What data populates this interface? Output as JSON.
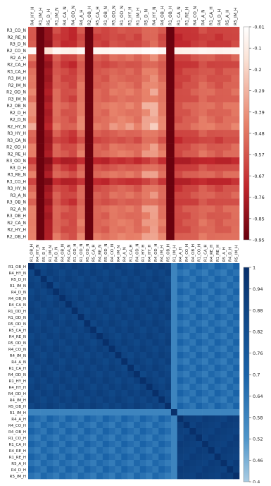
{
  "chart_data": [
    {
      "type": "heatmap",
      "colormap": "red-white",
      "colors": {
        "low": "#67000d",
        "mid": "#d73027",
        "high": "#ffffff"
      },
      "columns": [
        "R4_HY_H",
        "R1_IM_H",
        "R5_D_H",
        "R1_IM_N",
        "R4_CA_N",
        "R4_OD_N",
        "R4_A_H",
        "R2_OB_H",
        "R5_CA_H",
        "R1_OB_N",
        "R5_OD_N",
        "R1_OD_N",
        "R1_HY_H",
        "R1_IM_H",
        "R5_D_N",
        "R4_HY_N",
        "R4_OB_H",
        "R1_OB_H",
        "R1_CA_N",
        "R1_RE_H",
        "R4_CO_N",
        "R4_A_N",
        "R1_CA_H",
        "R4_D_H",
        "R5_A_H",
        "R5_IM_H"
      ],
      "rows": [
        "R3_CO_N",
        "R2_RE_N",
        "R3_D_N",
        "R2_CO_N",
        "R2_A_H",
        "R2_CA_H",
        "R3_CA_H",
        "R3_IM_H",
        "R2_IM_N",
        "R2_OD_N",
        "R3_IM_N",
        "R2_OB_N",
        "R2_D_H",
        "R2_D_N",
        "R2_HY_N",
        "R3_HY_H",
        "R3_CA_N",
        "R2_OD_H",
        "R2_RE_H",
        "R3_OD_N",
        "R3_D_H",
        "R3_RE_N",
        "R3_CO_H",
        "R3_HY_N",
        "R3_A_N",
        "R3_OB_N",
        "R2_A_N",
        "R3_OB_H",
        "R2_CA_N",
        "R2_HY_H",
        "R2_OB_H"
      ],
      "colorbar": {
        "ticks": [
          "-0.01",
          "-0.1",
          "-0.2",
          "-0.29",
          "-0.39",
          "-0.48",
          "-0.57",
          "-0.67",
          "-0.76",
          "-0.85",
          "-0.95"
        ],
        "range": [
          -0.95,
          -0.01
        ]
      },
      "row_profile": [
        0.35,
        0.3,
        0.3,
        0.05,
        0.48,
        0.35,
        0.45,
        0.45,
        0.5,
        0.55,
        0.5,
        0.6,
        0.55,
        0.58,
        0.65,
        0.45,
        0.35,
        0.5,
        0.55,
        0.12,
        0.4,
        0.55,
        0.15,
        0.42,
        0.5,
        0.4,
        0.55,
        0.5,
        0.55,
        0.52,
        0.6
      ],
      "col_profile": [
        0.85,
        -0.45,
        0.15,
        0.72,
        0.6,
        0.55,
        0.8,
        -0.45,
        0.72,
        0.7,
        0.8,
        0.8,
        0.8,
        0.75,
        0.9,
        0.95,
        0.8,
        -0.45,
        0.55,
        0.6,
        0.65,
        0.75,
        0.7,
        0.65,
        0.7,
        0.75
      ]
    },
    {
      "type": "heatmap",
      "colormap": "blue",
      "colors": {
        "low": "#a9cce3",
        "high": "#08306b"
      },
      "columns": [
        "R1_OB_H",
        "R4_HY_N",
        "R5_D_H",
        "R1_IM_N",
        "R4_D_N",
        "R4_OB_N",
        "R4_CA_N",
        "R1_OD_H",
        "R1_OD_N",
        "R5_OD_N",
        "R5_CA_H",
        "R4_RE_N",
        "R5_OD_N",
        "R4_CO_N",
        "R4_IM_N",
        "R4_A_N",
        "R1_CA_H",
        "R4_OD_N",
        "R1_HY_H",
        "R4_HY_H",
        "R4_OD_H",
        "R4_IM_H",
        "R5_OB_H",
        "R1_IM_H",
        "R4_A_H",
        "R4_CO_H",
        "R4_OB_H",
        "R1_CO_H",
        "R1_CA_H",
        "R4_RE_H",
        "R1_RE_H",
        "R5_A_H",
        "R4_D_H",
        "R5_IM_H"
      ],
      "rows": [
        "R1_OB_H",
        "R4_HY_N",
        "R5_D_H",
        "R1_IM_N",
        "R4_D_N",
        "R4_OB_N",
        "R4_CA_N",
        "R1_OD_H",
        "R1_OD_N",
        "R5_OD_N",
        "R5_CA_H",
        "R4_RE_N",
        "R5_OD_N",
        "R4_CO_N",
        "R4_IM_N",
        "R4_A_N",
        "R1_CA_H",
        "R4_OD_N",
        "R1_HY_H",
        "R4_HY_H",
        "R4_OD_H",
        "R4_IM_H",
        "R5_OB_H",
        "R1_IM_H",
        "R4_A_H",
        "R4_CO_H",
        "R4_OB_H",
        "R1_CO_H",
        "R1_CA_H",
        "R4_RE_H",
        "R1_RE_H",
        "R5_A_H",
        "R4_D_H",
        "R5_IM_H"
      ],
      "colorbar": {
        "ticks": [
          "1",
          "0.94",
          "0.88",
          "0.82",
          "0.76",
          "0.7",
          "0.64",
          "0.58",
          "0.52",
          "0.46",
          "0.4"
        ],
        "range": [
          0.4,
          1
        ]
      },
      "cluster_split_index": 23
    }
  ]
}
